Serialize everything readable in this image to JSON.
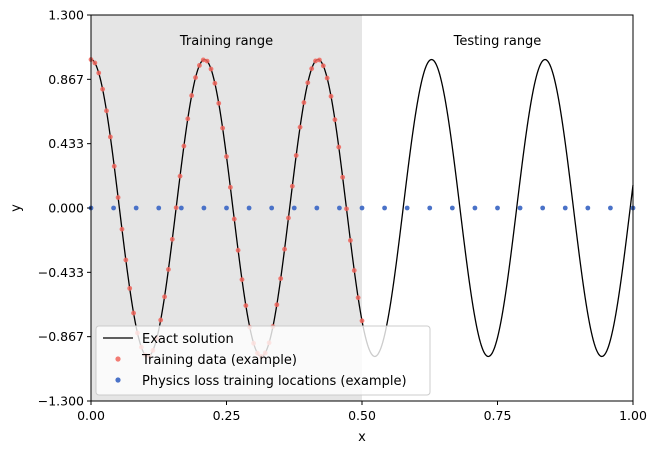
{
  "chart_data": {
    "type": "line",
    "xlabel": "x",
    "ylabel": "y",
    "xlim": [
      0.0,
      1.0
    ],
    "ylim": [
      -1.3,
      1.3
    ],
    "xticks": [
      "0.00",
      "0.25",
      "0.50",
      "0.75",
      "1.00"
    ],
    "yticks": [
      "1.300",
      "0.867",
      "0.433",
      "0.000",
      "−0.433",
      "−0.867",
      "−1.300"
    ],
    "regions": [
      {
        "label": "Training range",
        "x_range": [
          0.0,
          0.5
        ],
        "color": "#e5e5e5"
      },
      {
        "label": "Testing range",
        "x_range": [
          0.5,
          1.0
        ],
        "color": "#ffffff"
      }
    ],
    "series": [
      {
        "name": "Exact solution",
        "kind": "line",
        "color": "#000000",
        "function": "cos(30x)",
        "x_range": [
          0.0,
          1.0
        ]
      },
      {
        "name": "Training data (example)",
        "kind": "scatter",
        "color": "#f0645a",
        "function": "cos(30x)",
        "x_range": [
          0.0,
          0.5
        ],
        "count": 71
      },
      {
        "name": "Physics loss training locations (example)",
        "kind": "scatter",
        "color": "#4a72c8",
        "y": 0.0,
        "x_range": [
          0.0,
          1.0
        ],
        "count": 25
      }
    ],
    "legend_position": "lower-left",
    "grid": false
  }
}
